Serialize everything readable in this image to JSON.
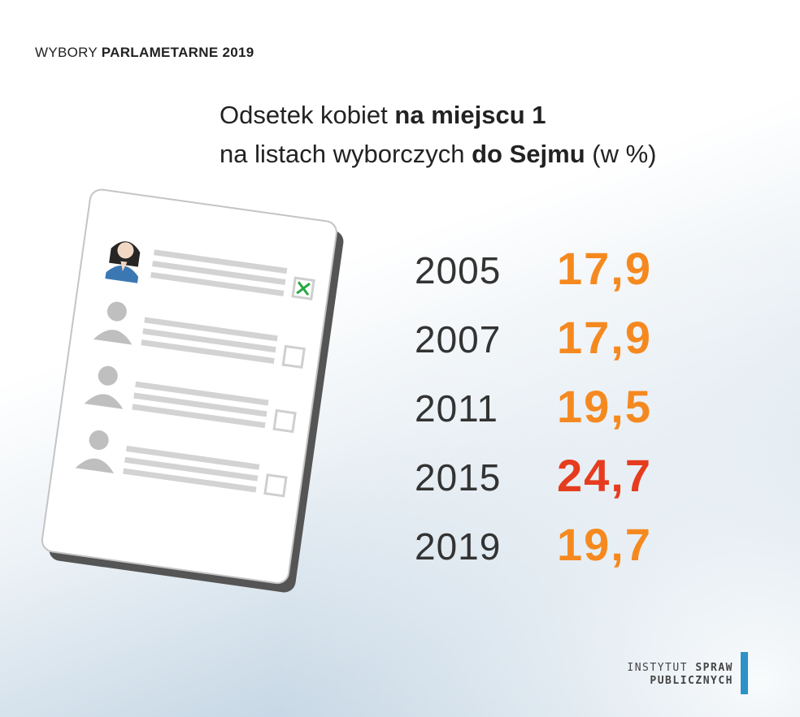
{
  "header": {
    "kicker_light": "WYBORY",
    "kicker_bold": "PARLAMETARNE 2019"
  },
  "title": {
    "line1_a": "Odsetek  kobiet ",
    "line1_b": "na miejscu 1",
    "line2_a": "na listach wyborczych ",
    "line2_b": "do Sejmu",
    "line2_c": " (w %)"
  },
  "colors": {
    "value_orange": "#f5891f",
    "value_highlight": "#e63c1e",
    "check_green": "#27a844",
    "logo_bar": "#2b93c6"
  },
  "chart_data": {
    "type": "table",
    "categories": [
      "2005",
      "2007",
      "2011",
      "2015",
      "2019"
    ],
    "values": [
      17.9,
      17.9,
      19.5,
      24.7,
      19.7
    ],
    "value_labels": [
      "17,9",
      "17,9",
      "19,5",
      "24,7",
      "19,7"
    ],
    "highlight_index": 3
  },
  "logo": {
    "line1_light": "INSTYTUT ",
    "line1_bold": "SPRAW",
    "line2": "PUBLICZNYCH"
  },
  "icons": [
    "woman-candidate-icon",
    "checked-box-icon",
    "person-icon",
    "empty-checkbox-icon"
  ]
}
